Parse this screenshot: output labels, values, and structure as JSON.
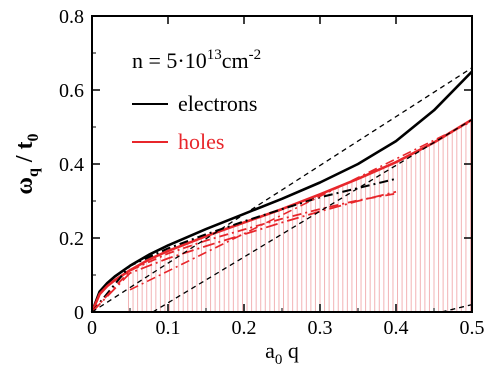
{
  "chart_data": {
    "type": "line",
    "xlabel": {
      "base": "a",
      "sub": "0",
      "rest": " q"
    },
    "ylabel": {
      "base": "ω",
      "sub": "q",
      "rest": " / t",
      "sub2": "0"
    },
    "xlim": [
      0,
      0.5
    ],
    "ylim": [
      0,
      0.8
    ],
    "xticks": [
      0,
      0.1,
      0.2,
      0.3,
      0.4,
      0.5
    ],
    "xtick_labels": [
      "0",
      "0.1",
      "0.2",
      "0.3",
      "0.4",
      "0.5"
    ],
    "yticks": [
      0,
      0.2,
      0.4,
      0.6,
      0.8
    ],
    "ytick_labels": [
      "0",
      "0.2",
      "0.4",
      "0.6",
      "0.8"
    ],
    "grid": false,
    "legend_position": "top-left",
    "annotation": {
      "prefix": "n = 5·10",
      "exp1": "13",
      "mid": "cm",
      "exp2": "-2"
    },
    "colors": {
      "electrons": "#000000",
      "holes": "#e8262b",
      "hatch": "#f2b3b5"
    },
    "series": [
      {
        "name": "electrons",
        "style": "solid",
        "x": [
          0,
          0.01,
          0.02,
          0.03,
          0.05,
          0.075,
          0.1,
          0.15,
          0.2,
          0.25,
          0.3,
          0.35,
          0.4,
          0.45,
          0.5
        ],
        "y": [
          0,
          0.055,
          0.078,
          0.096,
          0.125,
          0.155,
          0.18,
          0.224,
          0.265,
          0.306,
          0.35,
          0.4,
          0.462,
          0.545,
          0.65
        ]
      },
      {
        "name": "holes",
        "style": "solid",
        "x": [
          0,
          0.01,
          0.02,
          0.03,
          0.05,
          0.075,
          0.1,
          0.15,
          0.2,
          0.25,
          0.3,
          0.35,
          0.4,
          0.45,
          0.5
        ],
        "y": [
          0,
          0.048,
          0.07,
          0.086,
          0.113,
          0.142,
          0.165,
          0.205,
          0.242,
          0.278,
          0.318,
          0.36,
          0.405,
          0.458,
          0.52
        ]
      },
      {
        "style": "dashdot-black",
        "x": [
          0,
          0.05,
          0.1,
          0.15,
          0.2,
          0.25,
          0.3,
          0.35,
          0.4
        ],
        "y": [
          0,
          0.125,
          0.172,
          0.21,
          0.245,
          0.278,
          0.31,
          0.335,
          0.36
        ]
      },
      {
        "style": "dashdot-red-upper",
        "x": [
          0,
          0.05,
          0.1,
          0.15,
          0.2,
          0.25,
          0.3,
          0.35,
          0.4
        ],
        "y": [
          0,
          0.112,
          0.158,
          0.193,
          0.223,
          0.252,
          0.278,
          0.302,
          0.32
        ]
      },
      {
        "style": "dashdot-red-lower",
        "x": [
          0,
          0.05,
          0.1,
          0.15,
          0.2,
          0.25,
          0.3,
          0.35,
          0.4
        ],
        "y": [
          0,
          0.105,
          0.145,
          0.178,
          0.21,
          0.242,
          0.272,
          0.3,
          0.325
        ]
      },
      {
        "style": "dashdot-red-line",
        "x": [
          0.05,
          0.5
        ],
        "y": [
          0.06,
          0.515
        ]
      },
      {
        "style": "dashed-black-a",
        "x": [
          0,
          0.5
        ],
        "y": [
          0,
          0.66
        ]
      },
      {
        "style": "dashed-black-b",
        "x": [
          0.08,
          0.5
        ],
        "y": [
          0.0,
          0.52
        ]
      },
      {
        "style": "dashed-black-c",
        "x": [
          0.46,
          0.5
        ],
        "y": [
          0.0,
          0.02
        ]
      }
    ],
    "continuum": {
      "x_start": 0.048,
      "x_end": 0.5,
      "y_low": 0.0
    }
  }
}
